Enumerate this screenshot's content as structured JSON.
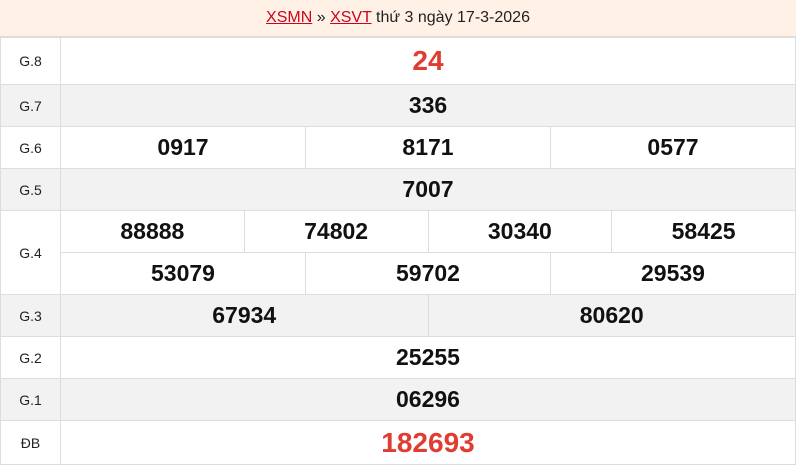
{
  "header": {
    "link1": "XSMN",
    "sep": "»",
    "link2": "XSVT",
    "text": "thứ 3 ngày 17-3-2026"
  },
  "prizes": [
    {
      "label": "G.8",
      "numbers": [
        "24"
      ]
    },
    {
      "label": "G.7",
      "numbers": [
        "336"
      ]
    },
    {
      "label": "G.6",
      "numbers": [
        "0917",
        "8171",
        "0577"
      ]
    },
    {
      "label": "G.5",
      "numbers": [
        "7007"
      ]
    },
    {
      "label": "G.4",
      "numbers": [
        "88888",
        "74802",
        "30340",
        "58425",
        "53079",
        "59702",
        "29539"
      ]
    },
    {
      "label": "G.3",
      "numbers": [
        "67934",
        "80620"
      ]
    },
    {
      "label": "G.2",
      "numbers": [
        "25255"
      ]
    },
    {
      "label": "G.1",
      "numbers": [
        "06296"
      ]
    },
    {
      "label": "ĐB",
      "numbers": [
        "182693"
      ]
    }
  ],
  "colors": {
    "highlight": "#e03c31",
    "header_bg": "#fff1e6",
    "link": "#d0021b"
  }
}
